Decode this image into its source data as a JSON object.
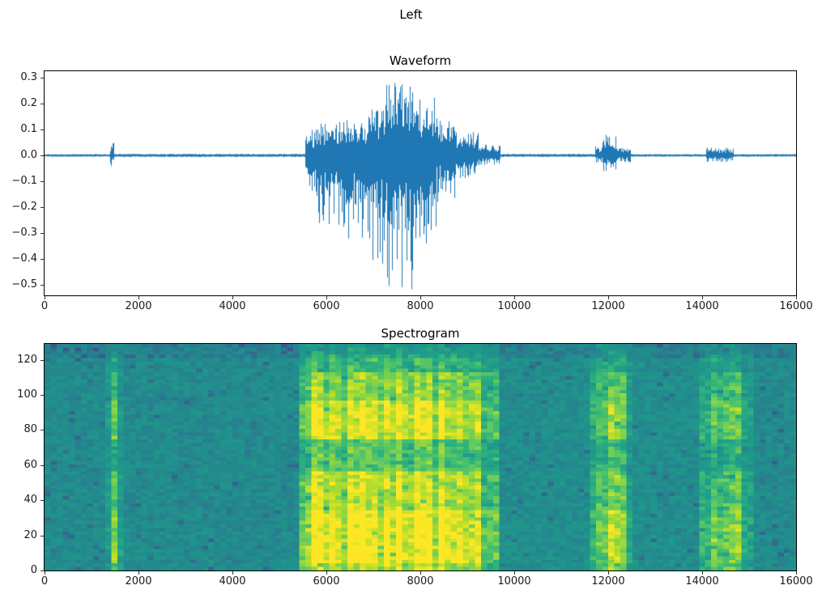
{
  "figure": {
    "suptitle": "Left",
    "background": "#ffffff"
  },
  "chart_data": [
    {
      "type": "line",
      "title": "Waveform",
      "line_color": "#1f77b4",
      "xlim": [
        0,
        16000
      ],
      "ylim": [
        -0.54,
        0.325
      ],
      "xticks": [
        0,
        2000,
        4000,
        6000,
        8000,
        10000,
        12000,
        14000,
        16000
      ],
      "xticklabels": [
        "0",
        "2000",
        "4000",
        "6000",
        "8000",
        "10000",
        "12000",
        "14000",
        "16000"
      ],
      "yticks": [
        0.3,
        0.2,
        0.1,
        0.0,
        -0.1,
        -0.2,
        -0.3,
        -0.4,
        -0.5
      ],
      "yticklabels": [
        "0.3",
        "0.2",
        "0.1",
        "0.0",
        "−0.1",
        "−0.2",
        "−0.3",
        "−0.4",
        "−0.5"
      ],
      "envelope_encoding": "segments [x_start, x_end, peak_positive_amplitude, peak_negative_amplitude]",
      "envelope": [
        [
          0,
          1390,
          0.005,
          0.005
        ],
        [
          1390,
          1490,
          0.05,
          0.042
        ],
        [
          1490,
          5560,
          0.006,
          0.006
        ],
        [
          5560,
          5800,
          0.1,
          0.14
        ],
        [
          5800,
          6400,
          0.13,
          0.28
        ],
        [
          6400,
          6900,
          0.15,
          0.33
        ],
        [
          6900,
          7250,
          0.18,
          0.42
        ],
        [
          7250,
          7850,
          0.28,
          0.52
        ],
        [
          7850,
          8350,
          0.23,
          0.34
        ],
        [
          8350,
          8750,
          0.15,
          0.18
        ],
        [
          8750,
          9250,
          0.09,
          0.09
        ],
        [
          9250,
          9700,
          0.045,
          0.04
        ],
        [
          9700,
          11720,
          0.006,
          0.006
        ],
        [
          11720,
          11880,
          0.035,
          0.03
        ],
        [
          11880,
          12180,
          0.08,
          0.06
        ],
        [
          12180,
          12480,
          0.035,
          0.028
        ],
        [
          12480,
          14080,
          0.005,
          0.005
        ],
        [
          14080,
          14680,
          0.032,
          0.027
        ],
        [
          14680,
          16000,
          0.005,
          0.005
        ]
      ]
    },
    {
      "type": "heatmap",
      "title": "Spectrogram",
      "colormap": "viridis",
      "viridis_stops": [
        "#440154",
        "#482878",
        "#3e4a89",
        "#31688e",
        "#26828e",
        "#21918c",
        "#1f9e89",
        "#35b779",
        "#6ece58",
        "#b5de2b",
        "#fde725"
      ],
      "xlim": [
        0,
        16000
      ],
      "ylim": [
        0,
        129
      ],
      "xticks": [
        0,
        2000,
        4000,
        6000,
        8000,
        10000,
        12000,
        14000,
        16000
      ],
      "xticklabels": [
        "0",
        "2000",
        "4000",
        "6000",
        "8000",
        "10000",
        "12000",
        "14000",
        "16000"
      ],
      "yticks": [
        0,
        20,
        40,
        60,
        80,
        100,
        120
      ],
      "yticklabels": [
        "0",
        "20",
        "40",
        "60",
        "80",
        "100",
        "120"
      ],
      "time_bins": 124,
      "freq_rows": 64,
      "activity_encoding": "segments [t_start, t_end, energy 0..1]",
      "activity_segments": [
        [
          0,
          1280,
          0.0
        ],
        [
          1280,
          1360,
          0.3
        ],
        [
          1360,
          1530,
          0.6
        ],
        [
          1530,
          1680,
          0.3
        ],
        [
          1680,
          5450,
          0.0
        ],
        [
          5450,
          5700,
          0.75
        ],
        [
          5700,
          9250,
          1.0
        ],
        [
          9250,
          9650,
          0.55
        ],
        [
          9650,
          11650,
          0.04
        ],
        [
          11650,
          11800,
          0.4
        ],
        [
          11800,
          12350,
          0.78
        ],
        [
          12350,
          12550,
          0.35
        ],
        [
          12550,
          13950,
          0.04
        ],
        [
          13950,
          14200,
          0.5
        ],
        [
          14200,
          14900,
          0.68
        ],
        [
          14900,
          15150,
          0.3
        ],
        [
          15150,
          16000,
          0.0
        ]
      ],
      "freq_profile_encoding": "segments [freq_start, freq_end, relative_energy 0..1]",
      "freq_profile": [
        [
          0,
          4,
          0.8
        ],
        [
          4,
          34,
          1.0
        ],
        [
          34,
          44,
          0.8
        ],
        [
          44,
          56,
          0.85
        ],
        [
          56,
          74,
          0.55
        ],
        [
          74,
          96,
          0.9
        ],
        [
          96,
          112,
          0.7
        ],
        [
          112,
          122,
          0.45
        ],
        [
          122,
          129,
          0.3
        ]
      ]
    }
  ]
}
